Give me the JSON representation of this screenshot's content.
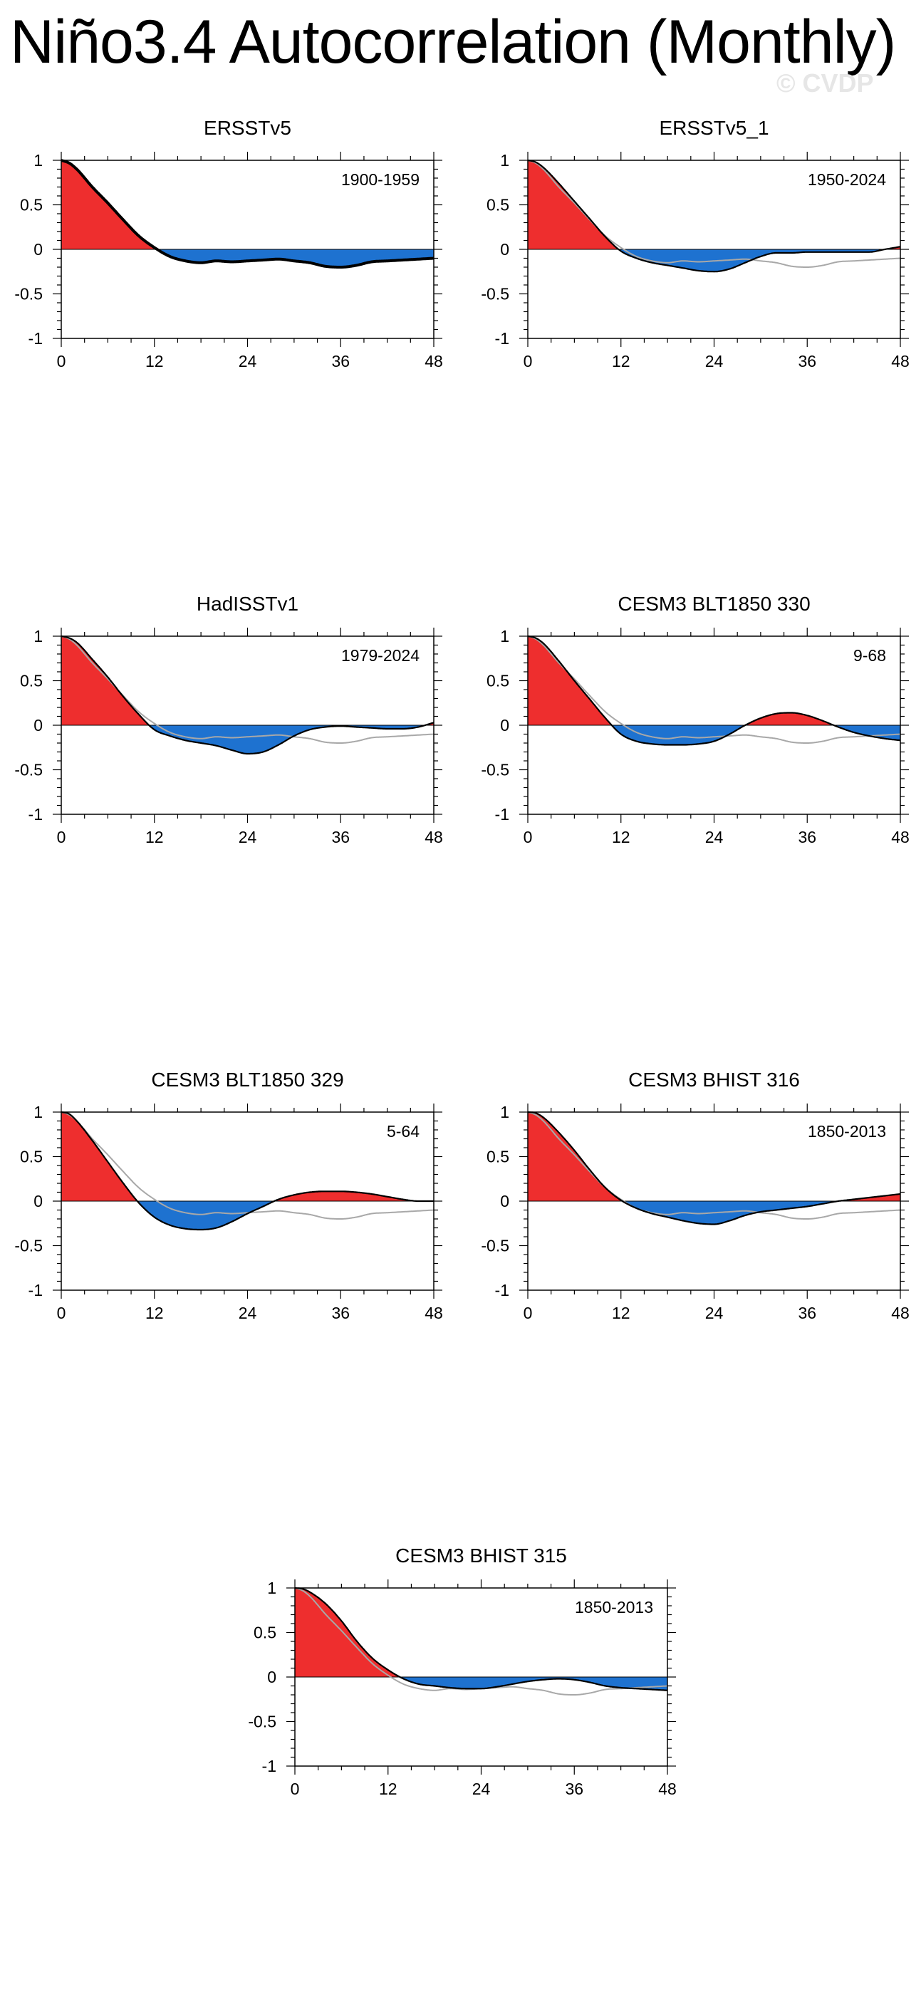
{
  "page": {
    "title": "Niño3.4 Autocorrelation (Monthly)",
    "watermark": "© CVDP"
  },
  "colors": {
    "positive_fill": "#ee2e2e",
    "negative_fill": "#1e72d0",
    "line": "#000000",
    "reference_line": "#a8a8a8"
  },
  "chart_data": [
    {
      "type": "area",
      "title": "ERSSTv5",
      "period": "1900-1959",
      "xlim": [
        0,
        48
      ],
      "ylim": [
        -1,
        1
      ],
      "xticks": [
        0,
        12,
        24,
        36,
        48
      ],
      "yticks": [
        -1,
        -0.5,
        0,
        0.5,
        1
      ],
      "ytick_labels": [
        "-1",
        "-0.5",
        "0",
        "0.5",
        "1"
      ],
      "show_reference": false,
      "x": [
        0,
        1,
        2,
        4,
        6,
        8,
        10,
        12,
        14,
        16,
        18,
        20,
        22,
        24,
        26,
        28,
        30,
        32,
        34,
        36,
        38,
        40,
        42,
        44,
        46,
        48
      ],
      "values": [
        1,
        0.97,
        0.9,
        0.7,
        0.52,
        0.33,
        0.15,
        0.02,
        -0.08,
        -0.13,
        -0.15,
        -0.13,
        -0.14,
        -0.13,
        -0.12,
        -0.11,
        -0.13,
        -0.15,
        -0.19,
        -0.2,
        -0.18,
        -0.14,
        -0.13,
        -0.12,
        -0.11,
        -0.1
      ]
    },
    {
      "type": "area",
      "title": "ERSSTv5_1",
      "period": "1950-2024",
      "xlim": [
        0,
        48
      ],
      "ylim": [
        -1,
        1
      ],
      "xticks": [
        0,
        12,
        24,
        36,
        48
      ],
      "yticks": [
        -1,
        -0.5,
        0,
        0.5,
        1
      ],
      "ytick_labels": [
        "-1",
        "-0.5",
        "0",
        "0.5",
        "1"
      ],
      "show_reference": true,
      "x": [
        0,
        1,
        2,
        4,
        6,
        8,
        10,
        12,
        14,
        16,
        18,
        20,
        22,
        24,
        26,
        28,
        30,
        32,
        34,
        36,
        38,
        40,
        42,
        44,
        46,
        48
      ],
      "values": [
        1,
        0.98,
        0.92,
        0.74,
        0.54,
        0.34,
        0.14,
        -0.02,
        -0.1,
        -0.15,
        -0.18,
        -0.21,
        -0.24,
        -0.25,
        -0.22,
        -0.15,
        -0.08,
        -0.04,
        -0.04,
        -0.03,
        -0.03,
        -0.03,
        -0.03,
        -0.03,
        0.0,
        0.03
      ]
    },
    {
      "type": "area",
      "title": "HadISSTv1",
      "period": "1979-2024",
      "xlim": [
        0,
        48
      ],
      "ylim": [
        -1,
        1
      ],
      "xticks": [
        0,
        12,
        24,
        36,
        48
      ],
      "yticks": [
        -1,
        -0.5,
        0,
        0.5,
        1
      ],
      "ytick_labels": [
        "-1",
        "-0.5",
        "0",
        "0.5",
        "1"
      ],
      "show_reference": true,
      "x": [
        0,
        1,
        2,
        4,
        6,
        8,
        10,
        12,
        14,
        16,
        18,
        20,
        22,
        24,
        26,
        28,
        30,
        32,
        34,
        36,
        38,
        40,
        42,
        44,
        46,
        48
      ],
      "values": [
        1,
        0.98,
        0.93,
        0.74,
        0.54,
        0.32,
        0.12,
        -0.05,
        -0.12,
        -0.17,
        -0.2,
        -0.23,
        -0.28,
        -0.32,
        -0.3,
        -0.22,
        -0.12,
        -0.05,
        -0.02,
        -0.01,
        -0.02,
        -0.03,
        -0.04,
        -0.04,
        -0.02,
        0.03
      ]
    },
    {
      "type": "area",
      "title": "CESM3 BLT1850 330",
      "period": "9-68",
      "xlim": [
        0,
        48
      ],
      "ylim": [
        -1,
        1
      ],
      "xticks": [
        0,
        12,
        24,
        36,
        48
      ],
      "yticks": [
        -1,
        -0.5,
        0,
        0.5,
        1
      ],
      "ytick_labels": [
        "-1",
        "-0.5",
        "0",
        "0.5",
        "1"
      ],
      "show_reference": true,
      "x": [
        0,
        1,
        2,
        4,
        6,
        8,
        10,
        12,
        14,
        16,
        18,
        20,
        22,
        24,
        26,
        28,
        30,
        32,
        34,
        36,
        38,
        40,
        42,
        44,
        46,
        48
      ],
      "values": [
        1,
        0.98,
        0.92,
        0.72,
        0.5,
        0.29,
        0.08,
        -0.1,
        -0.18,
        -0.21,
        -0.22,
        -0.22,
        -0.21,
        -0.18,
        -0.1,
        0.0,
        0.08,
        0.13,
        0.14,
        0.11,
        0.05,
        -0.02,
        -0.08,
        -0.12,
        -0.15,
        -0.17
      ]
    },
    {
      "type": "area",
      "title": "CESM3 BLT1850 329",
      "period": "5-64",
      "xlim": [
        0,
        48
      ],
      "ylim": [
        -1,
        1
      ],
      "xticks": [
        0,
        12,
        24,
        36,
        48
      ],
      "yticks": [
        -1,
        -0.5,
        0,
        0.5,
        1
      ],
      "ytick_labels": [
        "-1",
        "-0.5",
        "0",
        "0.5",
        "1"
      ],
      "show_reference": true,
      "x": [
        0,
        1,
        2,
        4,
        6,
        8,
        10,
        12,
        14,
        16,
        18,
        20,
        22,
        24,
        26,
        28,
        30,
        32,
        34,
        36,
        38,
        40,
        42,
        44,
        46,
        48
      ],
      "values": [
        1,
        0.98,
        0.9,
        0.68,
        0.44,
        0.2,
        -0.02,
        -0.18,
        -0.27,
        -0.31,
        -0.32,
        -0.3,
        -0.23,
        -0.14,
        -0.06,
        0.02,
        0.07,
        0.1,
        0.11,
        0.11,
        0.1,
        0.08,
        0.05,
        0.02,
        0.0,
        0.0
      ]
    },
    {
      "type": "area",
      "title": "CESM3 BHIST 316",
      "period": "1850-2013",
      "xlim": [
        0,
        48
      ],
      "ylim": [
        -1,
        1
      ],
      "xticks": [
        0,
        12,
        24,
        36,
        48
      ],
      "yticks": [
        -1,
        -0.5,
        0,
        0.5,
        1
      ],
      "ytick_labels": [
        "-1",
        "-0.5",
        "0",
        "0.5",
        "1"
      ],
      "show_reference": true,
      "x": [
        0,
        1,
        2,
        4,
        6,
        8,
        10,
        12,
        14,
        16,
        18,
        20,
        22,
        24,
        26,
        28,
        30,
        32,
        34,
        36,
        38,
        40,
        42,
        44,
        46,
        48
      ],
      "values": [
        1,
        0.99,
        0.94,
        0.77,
        0.57,
        0.35,
        0.15,
        0.01,
        -0.08,
        -0.14,
        -0.18,
        -0.22,
        -0.25,
        -0.26,
        -0.22,
        -0.16,
        -0.12,
        -0.1,
        -0.08,
        -0.06,
        -0.03,
        0.0,
        0.02,
        0.04,
        0.06,
        0.08
      ]
    },
    {
      "type": "area",
      "title": "CESM3 BHIST 315",
      "period": "1850-2013",
      "xlim": [
        0,
        48
      ],
      "ylim": [
        -1,
        1
      ],
      "xticks": [
        0,
        12,
        24,
        36,
        48
      ],
      "yticks": [
        -1,
        -0.5,
        0,
        0.5,
        1
      ],
      "ytick_labels": [
        "-1",
        "-0.5",
        "0",
        "0.5",
        "1"
      ],
      "show_reference": true,
      "x": [
        0,
        1,
        2,
        4,
        6,
        8,
        10,
        12,
        14,
        16,
        18,
        20,
        22,
        24,
        26,
        28,
        30,
        32,
        34,
        36,
        38,
        40,
        42,
        44,
        46,
        48
      ],
      "values": [
        1,
        0.99,
        0.95,
        0.82,
        0.63,
        0.4,
        0.21,
        0.08,
        -0.02,
        -0.08,
        -0.1,
        -0.12,
        -0.13,
        -0.13,
        -0.11,
        -0.08,
        -0.05,
        -0.03,
        -0.02,
        -0.03,
        -0.06,
        -0.1,
        -0.12,
        -0.13,
        -0.14,
        -0.15
      ]
    }
  ]
}
